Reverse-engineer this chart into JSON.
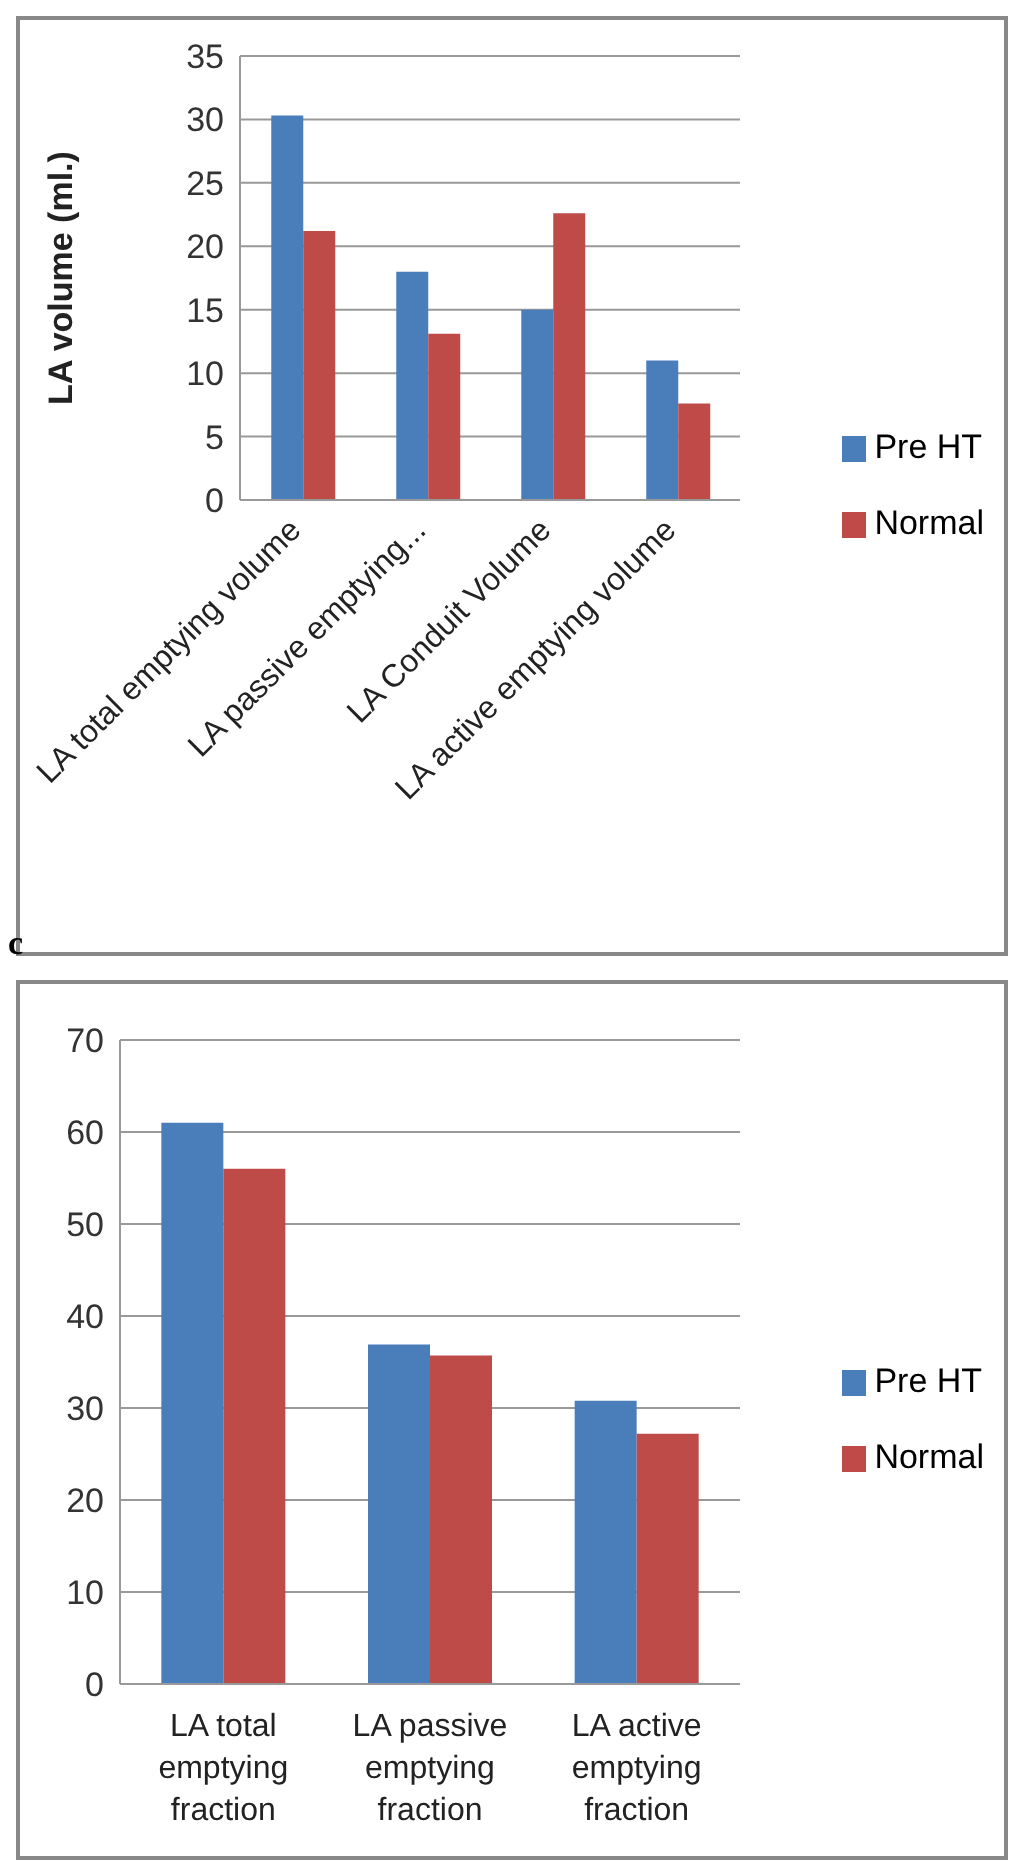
{
  "chart_data": [
    {
      "type": "bar",
      "ylabel": "LA volume (ml.)",
      "categories": [
        "LA total emptying volume",
        "LA passive emptying...",
        "LA Conduit Volume",
        "LA active emptying volume"
      ],
      "series": [
        {
          "name": "Pre HT",
          "color": "#4a7ebb",
          "values": [
            30.3,
            18,
            15,
            11
          ]
        },
        {
          "name": "Normal",
          "color": "#be4b48",
          "values": [
            21.2,
            13.1,
            22.6,
            7.6
          ]
        }
      ],
      "ylim": [
        0,
        35
      ],
      "yticks": [
        0,
        5,
        10,
        15,
        20,
        25,
        30,
        35
      ],
      "grid": "y",
      "legend": "right"
    },
    {
      "type": "bar",
      "annotations": [
        "c"
      ],
      "categories": [
        "LA total emptying fraction",
        "LA passive emptying fraction",
        "LA active emptying fraction"
      ],
      "series": [
        {
          "name": "Pre HT",
          "color": "#4a7ebb",
          "values": [
            61,
            36.9,
            30.8
          ]
        },
        {
          "name": "Normal",
          "color": "#be4b48",
          "values": [
            56,
            35.7,
            27.2
          ]
        }
      ],
      "ylim": [
        0,
        70
      ],
      "yticks": [
        0,
        10,
        20,
        30,
        40,
        50,
        60,
        70
      ],
      "grid": "y",
      "legend": "right"
    }
  ]
}
